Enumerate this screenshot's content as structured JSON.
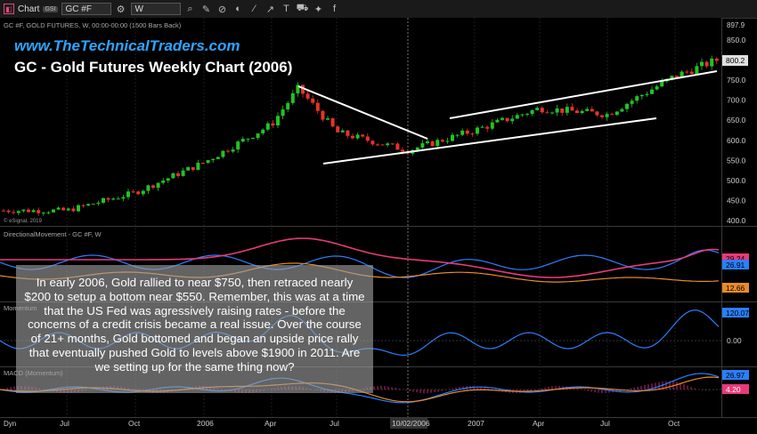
{
  "toolbar": {
    "chart_label": "Chart",
    "badge": "GSI",
    "symbol": "GC #F",
    "interval": "W",
    "icons": [
      "gear-icon",
      "search-icon",
      "pencil-icon",
      "ruler-icon",
      "color-icon",
      "line-icon",
      "trend-icon",
      "text-icon",
      "cart-icon",
      "twitter-icon",
      "facebook-icon"
    ]
  },
  "price_pane": {
    "header": "GC #F, GOLD FUTURES, W, 00:00-00:00 (1500 Bars Back)",
    "url_title": "www.TheTechnicalTraders.com",
    "main_title": "GC - Gold Futures Weekly Chart (2006)",
    "esignal": "© eSignal, 2019",
    "y_ticks": [
      "850.0",
      "800.0",
      "750.0",
      "700.0",
      "650.0",
      "600.0",
      "550.0",
      "500.0",
      "450.0",
      "400.0"
    ],
    "top_value": "897.9",
    "last_price": "800.2",
    "colors": {
      "up": "#22c322",
      "down": "#e8322a",
      "trendline": "#ffffff",
      "title_url": "#2fa4ff"
    }
  },
  "dmi_pane": {
    "header": "DirectionalMovement - GC #F, W",
    "values": [
      "29.24",
      "26.91",
      "12.66"
    ],
    "colors": {
      "plus_di": "#2a7fff",
      "minus_di": "#e83a7a",
      "adx": "#e88a2a"
    }
  },
  "momentum_pane": {
    "header": "Momentum",
    "values": [
      "120.07",
      "0.00"
    ]
  },
  "macd_pane": {
    "header": "MACD (Momentum)",
    "values": [
      "26.97",
      "4.20"
    ]
  },
  "time_axis": {
    "labels": [
      "Jul",
      "Oct",
      "2006",
      "Apr",
      "Jul",
      "10/02/2006",
      "2007",
      "Apr",
      "Jul",
      "Oct"
    ],
    "corner": "Dyn"
  },
  "overlay_text": "In early 2006, Gold rallied to near $750, then retraced nearly $200 to setup a bottom near $550.  Remember, this was at a time that the US Fed was agressively raising rates - before the concerns of a credit crisis became a real issue.  Over the course of 21+ months, Gold bottomed and began an upside price rally that eventually pushed Gold to levels above $1900 in 2011.  Are we setting up for the same thing now?",
  "chart_data": {
    "type": "candlestick",
    "series_note": "weekly",
    "x": [
      "2005-05",
      "2005-07",
      "2005-10",
      "2006-01",
      "2006-04",
      "2006-05",
      "2006-07",
      "2006-10",
      "2007-01",
      "2007-04",
      "2007-07",
      "2007-10",
      "2007-11"
    ],
    "y": [
      425,
      425,
      470,
      545,
      640,
      730,
      620,
      575,
      625,
      680,
      665,
      760,
      800
    ],
    "ylim": [
      390,
      900
    ]
  }
}
